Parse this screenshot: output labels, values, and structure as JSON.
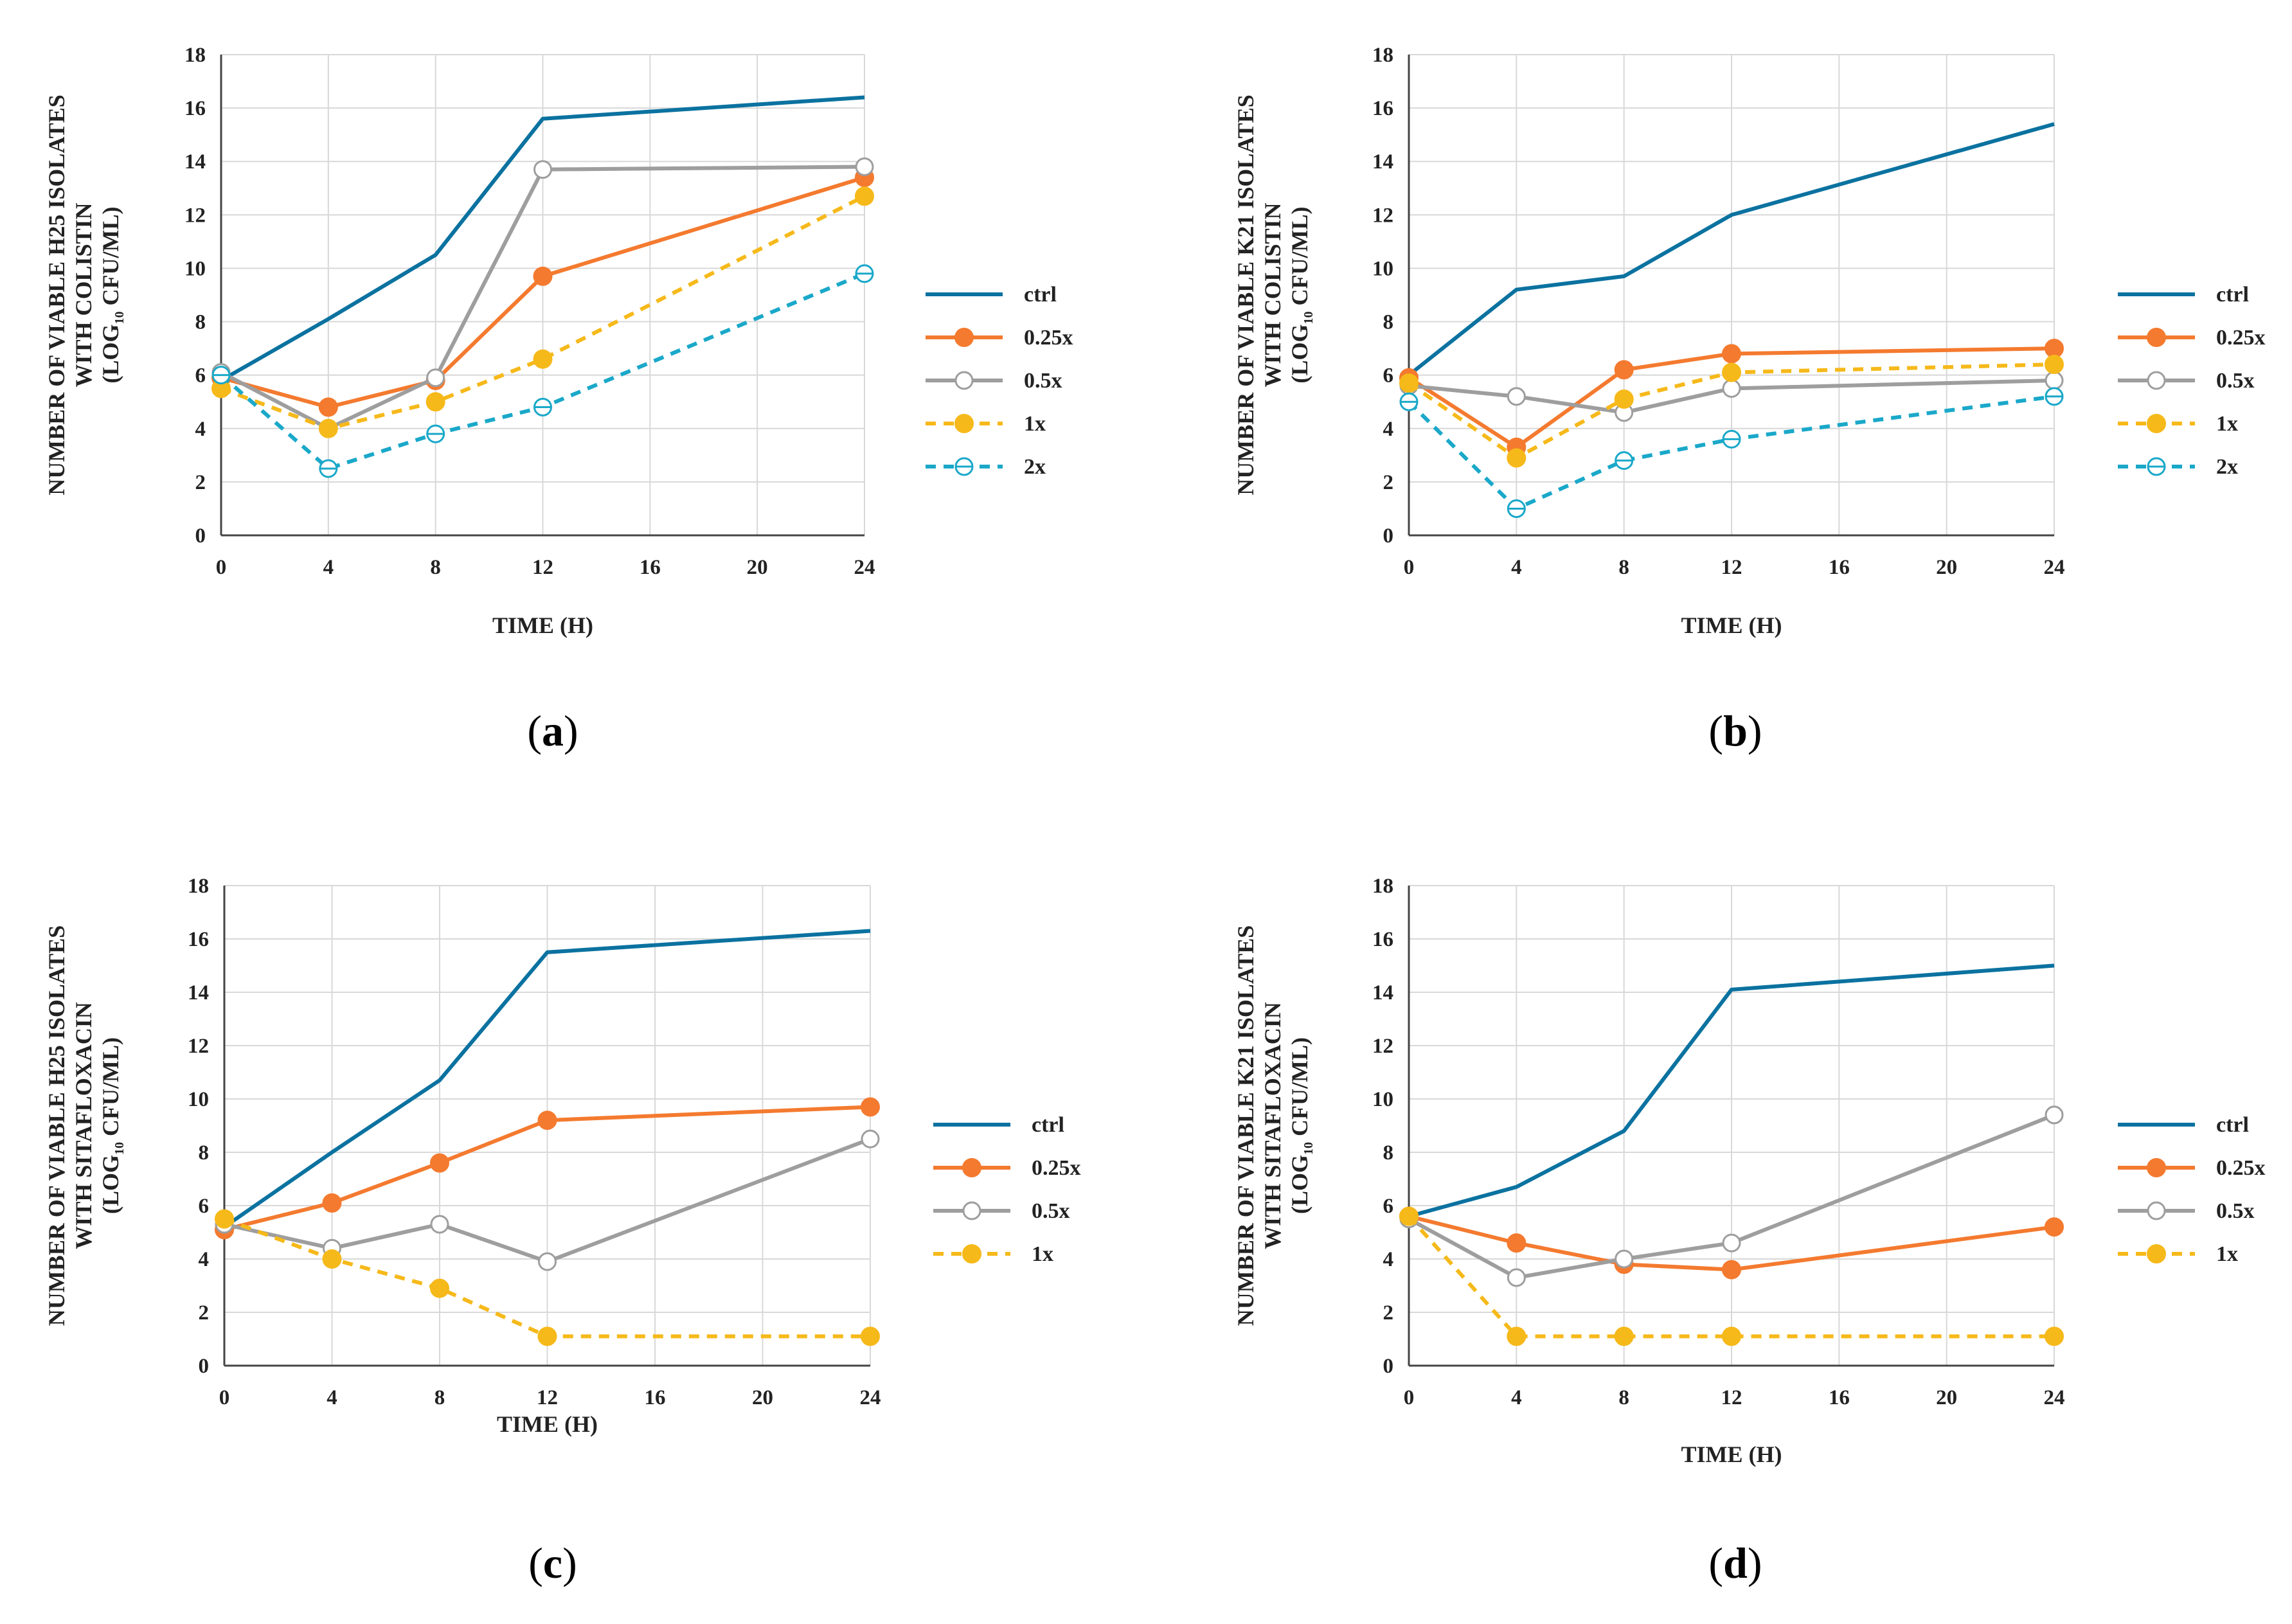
{
  "colors": {
    "ctrl": "#0b72a0",
    "q025": "#f47a2f",
    "q05": "#9e9e9e",
    "q1": "#f6b91a",
    "q2": "#1aa8c9",
    "grid": "#d8d8d8",
    "axis": "#444444"
  },
  "chart_data": [
    {
      "type": "line",
      "panel_label": "a",
      "ylabel": [
        "NUMBER OF VIABLE H25 ISOLATES",
        "WITH COLISTIN"
      ],
      "ylabel_unit": {
        "prefix": "(LOG",
        "sub": "10",
        "suffix": " CFU/ML)"
      },
      "xlabel": "TIME (H)",
      "xlim": [
        0,
        24
      ],
      "ylim": [
        0,
        18
      ],
      "xticks": [
        "0",
        "4",
        "8",
        "12",
        "16",
        "20",
        "24"
      ],
      "yticks": [
        "0",
        "2",
        "4",
        "6",
        "8",
        "10",
        "12",
        "14",
        "16",
        "18"
      ],
      "x": [
        0,
        4,
        8,
        12,
        24
      ],
      "series": [
        {
          "name": "ctrl",
          "values": [
            5.8,
            8.1,
            10.5,
            15.6,
            16.4
          ]
        },
        {
          "name": "0.25x",
          "values": [
            5.9,
            4.8,
            5.8,
            9.7,
            13.4
          ]
        },
        {
          "name": "0.5x",
          "values": [
            6.1,
            4.0,
            5.9,
            13.7,
            13.8
          ]
        },
        {
          "name": "1x",
          "values": [
            5.5,
            4.0,
            5.0,
            6.6,
            12.7
          ]
        },
        {
          "name": "2x",
          "values": [
            6.0,
            2.5,
            3.8,
            4.8,
            9.8
          ]
        }
      ]
    },
    {
      "type": "line",
      "panel_label": "b",
      "ylabel": [
        "NUMBER OF VIABLE K21 ISOLATES",
        "WITH COLISTIN"
      ],
      "ylabel_unit": {
        "prefix": "(LOG",
        "sub": "10",
        "suffix": " CFU/ML)"
      },
      "xlabel": "TIME (H)",
      "xlim": [
        0,
        24
      ],
      "ylim": [
        0,
        18
      ],
      "xticks": [
        "0",
        "4",
        "8",
        "12",
        "16",
        "20",
        "24"
      ],
      "yticks": [
        "0",
        "2",
        "4",
        "6",
        "8",
        "10",
        "12",
        "14",
        "16",
        "18"
      ],
      "x": [
        0,
        4,
        8,
        12,
        24
      ],
      "series": [
        {
          "name": "ctrl",
          "values": [
            6.0,
            9.2,
            9.7,
            12.0,
            15.4
          ]
        },
        {
          "name": "0.25x",
          "values": [
            5.9,
            3.3,
            6.2,
            6.8,
            7.0
          ]
        },
        {
          "name": "0.5x",
          "values": [
            5.6,
            5.2,
            4.6,
            5.5,
            5.8
          ]
        },
        {
          "name": "1x",
          "values": [
            5.7,
            2.9,
            5.1,
            6.1,
            6.4
          ]
        },
        {
          "name": "2x",
          "values": [
            5.0,
            1.0,
            2.8,
            3.6,
            5.2
          ]
        }
      ]
    },
    {
      "type": "line",
      "panel_label": "c",
      "ylabel": [
        "NUMBER OF VIABLE H25 ISOLATES",
        "WITH SITAFLOXACIN"
      ],
      "ylabel_unit": {
        "prefix": "(LOG",
        "sub": "10",
        "suffix": " CFU/ML)"
      },
      "xlabel": "TIME (H)",
      "xlim": [
        0,
        24
      ],
      "ylim": [
        0,
        18
      ],
      "xticks": [
        "0",
        "4",
        "8",
        "12",
        "16",
        "20",
        "24"
      ],
      "yticks": [
        "0",
        "2",
        "4",
        "6",
        "8",
        "10",
        "12",
        "14",
        "16",
        "18"
      ],
      "x": [
        0,
        4,
        8,
        12,
        24
      ],
      "series": [
        {
          "name": "ctrl",
          "values": [
            5.2,
            8.0,
            10.7,
            15.5,
            16.3
          ]
        },
        {
          "name": "0.25x",
          "values": [
            5.1,
            6.1,
            7.6,
            9.2,
            9.7
          ]
        },
        {
          "name": "0.5x",
          "values": [
            5.3,
            4.4,
            5.3,
            3.9,
            8.5
          ]
        },
        {
          "name": "1x",
          "values": [
            5.5,
            4.0,
            2.9,
            1.1,
            1.1
          ]
        }
      ]
    },
    {
      "type": "line",
      "panel_label": "d",
      "ylabel": [
        "NUMBER OF VIABLE K21 ISOLATES",
        "WITH SITAFLOXACIN"
      ],
      "ylabel_unit": {
        "prefix": "(LOG",
        "sub": "10",
        "suffix": " CFU/ML)"
      },
      "xlabel": "TIME (H)",
      "xlim": [
        0,
        24
      ],
      "ylim": [
        0,
        18
      ],
      "xticks": [
        "0",
        "4",
        "8",
        "12",
        "16",
        "20",
        "24"
      ],
      "yticks": [
        "0",
        "2",
        "4",
        "6",
        "8",
        "10",
        "12",
        "14",
        "16",
        "18"
      ],
      "x": [
        0,
        4,
        8,
        12,
        24
      ],
      "series": [
        {
          "name": "ctrl",
          "values": [
            5.6,
            6.7,
            8.8,
            14.1,
            15.0
          ]
        },
        {
          "name": "0.25x",
          "values": [
            5.6,
            4.6,
            3.8,
            3.6,
            5.2
          ]
        },
        {
          "name": "0.5x",
          "values": [
            5.5,
            3.3,
            4.0,
            4.6,
            9.4
          ]
        },
        {
          "name": "1x",
          "values": [
            5.6,
            1.1,
            1.1,
            1.1,
            1.1
          ]
        }
      ]
    }
  ]
}
